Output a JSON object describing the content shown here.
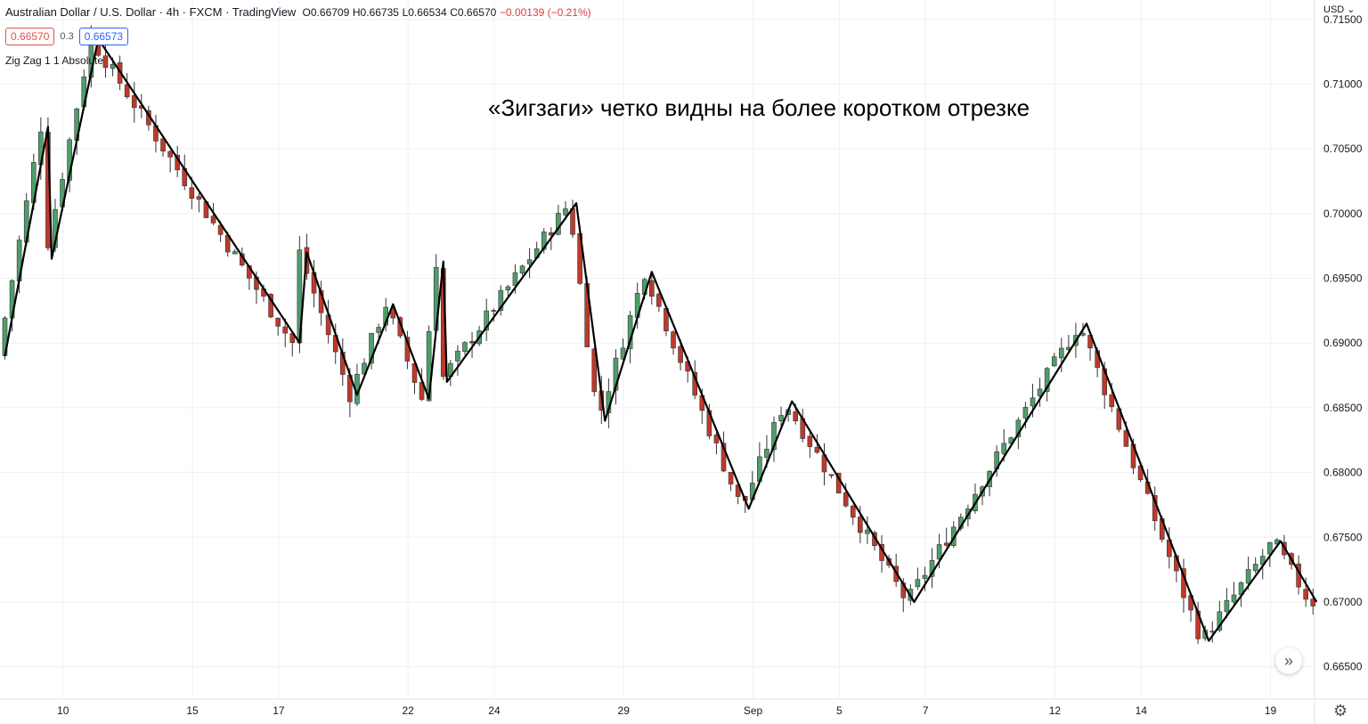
{
  "header": {
    "title": "Australian Dollar / U.S. Dollar · 4h · FXCM · TradingView",
    "open": "O0.66709",
    "high": "H0.66735",
    "low": "L0.66534",
    "close": "C0.66570",
    "change": "−0.00139 (−0.21%)"
  },
  "prices": {
    "bid": "0.66570",
    "spread": "0.3",
    "ask": "0.66573"
  },
  "indicator": {
    "label": "Zig Zag 1 1 Absolute"
  },
  "annotation": "«Зигзаги» четко видны на более коротком отрезке",
  "currency": "USD",
  "icons": {
    "scroll": "double-chevron-right-icon",
    "settings": "gear-icon"
  },
  "colors": {
    "up": "#4f9d69",
    "down": "#c0392b",
    "zigzag": "#000000",
    "grid": "#eef0f3"
  },
  "chart_data": {
    "type": "candlestick",
    "yaxis": {
      "ylim": [
        0.6625,
        0.7165
      ],
      "ticks": [
        0.665,
        0.67,
        0.675,
        0.68,
        0.685,
        0.69,
        0.695,
        0.7,
        0.705,
        0.71,
        0.715
      ],
      "tick_labels": [
        "0.66500",
        "0.67000",
        "0.67500",
        "0.68000",
        "0.68500",
        "0.69000",
        "0.69500",
        "0.70000",
        "0.70500",
        "0.71000",
        "0.71500"
      ]
    },
    "xaxis": {
      "bars": 183,
      "ticks": [
        {
          "label": "10",
          "bar": 4
        },
        {
          "label": "15",
          "bar": 22
        },
        {
          "label": "17",
          "bar": 34
        },
        {
          "label": "22",
          "bar": 52
        },
        {
          "label": "24",
          "bar": 64
        },
        {
          "label": "29",
          "bar": 82
        },
        {
          "label": "Sep",
          "bar": 100
        },
        {
          "label": "5",
          "bar": 112
        },
        {
          "label": "7",
          "bar": 124
        },
        {
          "label": "12",
          "bar": 142
        },
        {
          "label": "14",
          "bar": 154
        },
        {
          "label": "19",
          "bar": 172
        }
      ]
    },
    "zigzag": [
      {
        "bar": 0,
        "price": 0.689
      },
      {
        "bar": 6,
        "price": 0.7067
      },
      {
        "bar": 6.5,
        "price": 0.6965
      },
      {
        "bar": 13,
        "price": 0.7135
      },
      {
        "bar": 41,
        "price": 0.69
      },
      {
        "bar": 42,
        "price": 0.697
      },
      {
        "bar": 49,
        "price": 0.686
      },
      {
        "bar": 54,
        "price": 0.693
      },
      {
        "bar": 59,
        "price": 0.6857
      },
      {
        "bar": 61,
        "price": 0.6963
      },
      {
        "bar": 61.5,
        "price": 0.687
      },
      {
        "bar": 79.5,
        "price": 0.7008
      },
      {
        "bar": 83.5,
        "price": 0.684
      },
      {
        "bar": 90,
        "price": 0.6955
      },
      {
        "bar": 103.5,
        "price": 0.6772
      },
      {
        "bar": 109.5,
        "price": 0.6855
      },
      {
        "bar": 126.5,
        "price": 0.67
      },
      {
        "bar": 150.5,
        "price": 0.6915
      },
      {
        "bar": 167.5,
        "price": 0.667
      },
      {
        "bar": 177.5,
        "price": 0.6747
      },
      {
        "bar": 182.5,
        "price": 0.67
      }
    ]
  }
}
